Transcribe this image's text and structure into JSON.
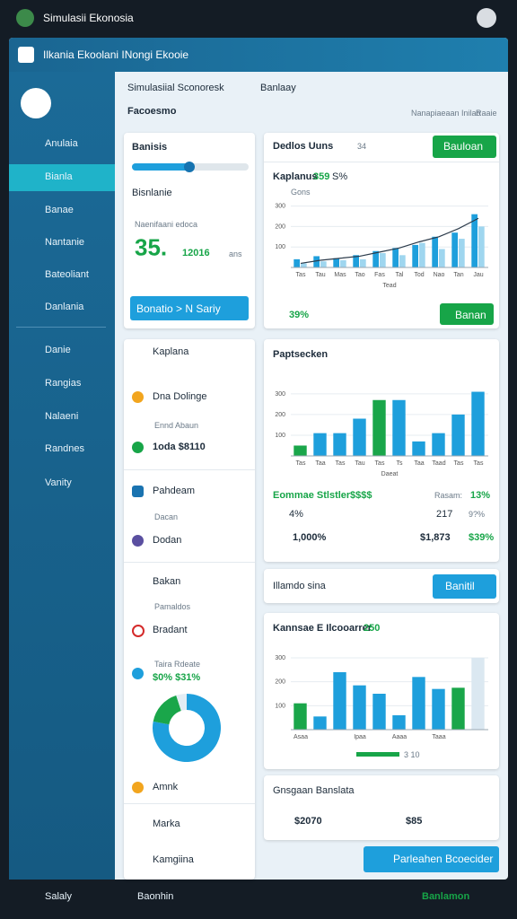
{
  "top_bar": {
    "title": "Simulasii Ekonosia"
  },
  "window": {
    "title": "Ilkania Ekoolani INongi Ekooie"
  },
  "sidebar": {
    "items": [
      "Anulaia",
      "Bianla",
      "Banae",
      "Nantanie",
      "Bateoliant",
      "Danlania",
      "Danie",
      "Rangias",
      "Nalaeni",
      "Randnes",
      "Vanity"
    ]
  },
  "header": {
    "title": "Simulasiial Sconoresk",
    "tab": "Banlaay",
    "subtitle": "Facoesmo",
    "users": [
      "Nanapiaeaan Inilao",
      "Raaie"
    ]
  },
  "summary": {
    "title": "Banisis",
    "check": "Bisnlanie",
    "caption": "Naenifaani edoca",
    "big": "35.",
    "value": "12016",
    "unit": "ans",
    "button": "Bonatio > N Sariy"
  },
  "list": {
    "items": [
      "Kaplana",
      "Dna Dolinge",
      "Ennd Abaun",
      "1oda $8110",
      "Pahdeam",
      "Dacan",
      "Dodan",
      "Bakan",
      "Pamaldos",
      "Bradant",
      "Taira Rdeate",
      "$0%  $31%",
      "Amnk",
      "Marka",
      "Kamgiina"
    ]
  },
  "top_card": {
    "label": "Dedlos Uuns",
    "count": "34",
    "button": "Bauloan",
    "footer": "39%",
    "footer_button": "Banan"
  },
  "chart_data": [
    {
      "type": "bar",
      "title": "Kaplanus",
      "badge": "359",
      "note": "S%",
      "axis_label": "Gons",
      "x_label": "Tead",
      "categories": [
        "Tas",
        "Tau",
        "Mas",
        "Tao",
        "Fas",
        "Tal",
        "Tod",
        "Nao",
        "Tan",
        "Jau"
      ],
      "series": [
        {
          "type": "bar",
          "color": "#1e9fdc",
          "values": [
            40,
            55,
            45,
            60,
            80,
            95,
            110,
            150,
            170,
            260
          ]
        },
        {
          "type": "bar",
          "color": "#9fd6ef",
          "values": [
            20,
            30,
            35,
            40,
            70,
            60,
            120,
            90,
            140,
            200
          ]
        },
        {
          "type": "line",
          "color": "#2b3a4a",
          "values": [
            20,
            35,
            45,
            55,
            75,
            95,
            125,
            150,
            190,
            240
          ]
        }
      ],
      "ylim": [
        0,
        320
      ],
      "yticks": [
        100,
        200,
        300
      ]
    },
    {
      "type": "bar",
      "title": "Paptsecken",
      "x_label": "Daeat",
      "categories": [
        "Tas",
        "Taa",
        "Tas",
        "Tau",
        "Tas",
        "Ts",
        "Taa",
        "Taad",
        "Tas",
        "Tas"
      ],
      "values": [
        50,
        110,
        110,
        180,
        270,
        270,
        70,
        110,
        200,
        310
      ],
      "colors": [
        "#1aa64a",
        "#1e9fdc",
        "#1e9fdc",
        "#1e9fdc",
        "#1aa64a",
        "#1e9fdc",
        "#1e9fdc",
        "#1e9fdc",
        "#1e9fdc",
        "#1e9fdc"
      ],
      "ylim": [
        0,
        360
      ],
      "yticks": [
        100,
        200,
        300
      ]
    },
    {
      "type": "bar",
      "title": "Kannsae E Ilcooarrer",
      "badge": "250",
      "legend_value": "3 10",
      "categories": [
        "Asaa",
        null,
        null,
        "Ipaa",
        null,
        "Aaaa",
        null,
        "Taaa",
        null,
        null
      ],
      "values": [
        110,
        55,
        240,
        185,
        150,
        60,
        220,
        170,
        175,
        300
      ],
      "colors": [
        "#1aa64a",
        "#1e9fdc",
        "#1e9fdc",
        "#1e9fdc",
        "#1e9fdc",
        "#1e9fdc",
        "#1e9fdc",
        "#1e9fdc",
        "#1aa64a",
        "#dbe8f1"
      ],
      "ylim": [
        0,
        330
      ],
      "yticks": [
        100,
        200,
        300
      ]
    },
    {
      "type": "pie",
      "values": [
        78,
        17,
        5
      ],
      "colors": [
        "#1e9fdc",
        "#1aa64a",
        "#e3edf4"
      ]
    }
  ],
  "stats": {
    "title": "Eommae Stlstler",
    "badge": "$$$$",
    "rate_label": "Rasam:",
    "rate": "13%",
    "a": "4%",
    "b": "217",
    "c": "9?%",
    "d": "1,000%",
    "e": "$1,873",
    "f": "$39%"
  },
  "action_card": {
    "label": "Illamdo sina",
    "button": "Banitil"
  },
  "total_card": {
    "title": "Gnsgaan Banslata",
    "a": "$2070",
    "b": "$85"
  },
  "main_button": "Parleahen Bcoecider",
  "bottom_bar": {
    "left": "Salaly",
    "middle": "Baonhin",
    "right": "Banlamon"
  }
}
